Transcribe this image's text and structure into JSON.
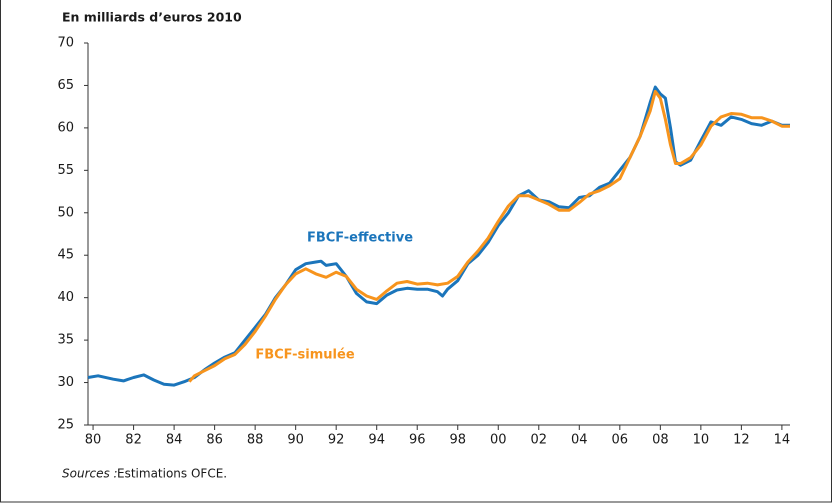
{
  "chart_data": {
    "type": "line",
    "title": "En milliards d’euros 2010",
    "source_label": "Sources :",
    "source_text": "Estimations OFCE.",
    "xlim": [
      1979.75,
      2014.4
    ],
    "xticks": [
      {
        "value": 1980,
        "label": "80"
      },
      {
        "value": 1982,
        "label": "82"
      },
      {
        "value": 1984,
        "label": "84"
      },
      {
        "value": 1986,
        "label": "86"
      },
      {
        "value": 1988,
        "label": "88"
      },
      {
        "value": 1990,
        "label": "90"
      },
      {
        "value": 1992,
        "label": "92"
      },
      {
        "value": 1994,
        "label": "94"
      },
      {
        "value": 1996,
        "label": "96"
      },
      {
        "value": 1998,
        "label": "98"
      },
      {
        "value": 2000,
        "label": "00"
      },
      {
        "value": 2002,
        "label": "02"
      },
      {
        "value": 2004,
        "label": "04"
      },
      {
        "value": 2006,
        "label": "06"
      },
      {
        "value": 2008,
        "label": "08"
      },
      {
        "value": 2010,
        "label": "10"
      },
      {
        "value": 2012,
        "label": "12"
      },
      {
        "value": 2014,
        "label": "14"
      }
    ],
    "ylim": [
      25,
      70
    ],
    "yticks": [
      25,
      30,
      35,
      40,
      45,
      50,
      55,
      60,
      65,
      70
    ],
    "series": [
      {
        "name": "FBCF-effective",
        "color": "#1b75bb",
        "x": [
          1979.75,
          1980.25,
          1981,
          1981.5,
          1982,
          1982.5,
          1983,
          1983.5,
          1984,
          1984.5,
          1985,
          1985.5,
          1986,
          1986.5,
          1987,
          1987.5,
          1988,
          1988.5,
          1989,
          1989.5,
          1990,
          1990.5,
          1991,
          1991.25,
          1991.5,
          1992,
          1992.5,
          1993,
          1993.5,
          1994,
          1994.5,
          1995,
          1995.5,
          1996,
          1996.5,
          1997,
          1997.25,
          1997.5,
          1998,
          1998.5,
          1999,
          1999.5,
          2000,
          2000.5,
          2001,
          2001.5,
          2002,
          2002.5,
          2003,
          2003.5,
          2004,
          2004.5,
          2005,
          2005.5,
          2006,
          2006.5,
          2007,
          2007.5,
          2007.75,
          2008,
          2008.25,
          2008.5,
          2008.75,
          2009,
          2009.5,
          2010,
          2010.5,
          2011,
          2011.5,
          2012,
          2012.5,
          2013,
          2013.5,
          2014,
          2014.4
        ],
        "values": [
          30.6,
          30.8,
          30.4,
          30.2,
          30.6,
          30.9,
          30.3,
          29.8,
          29.7,
          30.1,
          30.6,
          31.5,
          32.3,
          33.0,
          33.5,
          35.0,
          36.5,
          38.0,
          40.0,
          41.5,
          43.3,
          44.0,
          44.2,
          44.3,
          43.8,
          44.0,
          42.5,
          40.5,
          39.5,
          39.3,
          40.3,
          40.9,
          41.1,
          41.0,
          41.0,
          40.7,
          40.2,
          41.0,
          42.0,
          44.0,
          45.0,
          46.5,
          48.5,
          50.0,
          52.0,
          52.6,
          51.5,
          51.3,
          50.7,
          50.6,
          51.8,
          52.0,
          53.0,
          53.5,
          55.0,
          56.5,
          59.0,
          63.0,
          64.8,
          64.0,
          63.5,
          60.0,
          56.0,
          55.6,
          56.2,
          58.5,
          60.7,
          60.3,
          61.3,
          61.0,
          60.5,
          60.3,
          60.8,
          60.3,
          60.3
        ]
      },
      {
        "name": "FBCF-simulée",
        "color": "#f7941d",
        "x": [
          1984.75,
          1985,
          1985.5,
          1986,
          1986.5,
          1987,
          1987.5,
          1988,
          1988.5,
          1989,
          1989.5,
          1990,
          1990.5,
          1991,
          1991.5,
          1992,
          1992.5,
          1993,
          1993.5,
          1994,
          1994.5,
          1995,
          1995.5,
          1996,
          1996.5,
          1997,
          1997.5,
          1998,
          1998.5,
          1999,
          1999.5,
          2000,
          2000.5,
          2001,
          2001.5,
          2002,
          2002.5,
          2003,
          2003.5,
          2004,
          2004.5,
          2005,
          2005.5,
          2006,
          2006.5,
          2007,
          2007.5,
          2007.75,
          2008,
          2008.25,
          2008.5,
          2008.75,
          2009,
          2009.5,
          2010,
          2010.5,
          2011,
          2011.5,
          2012,
          2012.5,
          2013,
          2013.5,
          2014,
          2014.4
        ],
        "values": [
          30.1,
          30.8,
          31.4,
          32.0,
          32.8,
          33.3,
          34.5,
          36.0,
          37.8,
          39.8,
          41.5,
          42.8,
          43.4,
          42.8,
          42.4,
          43.0,
          42.5,
          41.0,
          40.2,
          39.8,
          40.8,
          41.7,
          41.9,
          41.6,
          41.7,
          41.5,
          41.7,
          42.5,
          44.2,
          45.5,
          47.0,
          49.0,
          50.8,
          52.0,
          52.0,
          51.5,
          51.0,
          50.3,
          50.3,
          51.2,
          52.2,
          52.6,
          53.2,
          54.0,
          56.5,
          59.0,
          62.0,
          64.3,
          63.5,
          61.0,
          58.0,
          55.8,
          55.8,
          56.5,
          58.0,
          60.2,
          61.3,
          61.7,
          61.6,
          61.2,
          61.2,
          60.8,
          60.2,
          60.2
        ]
      }
    ]
  }
}
